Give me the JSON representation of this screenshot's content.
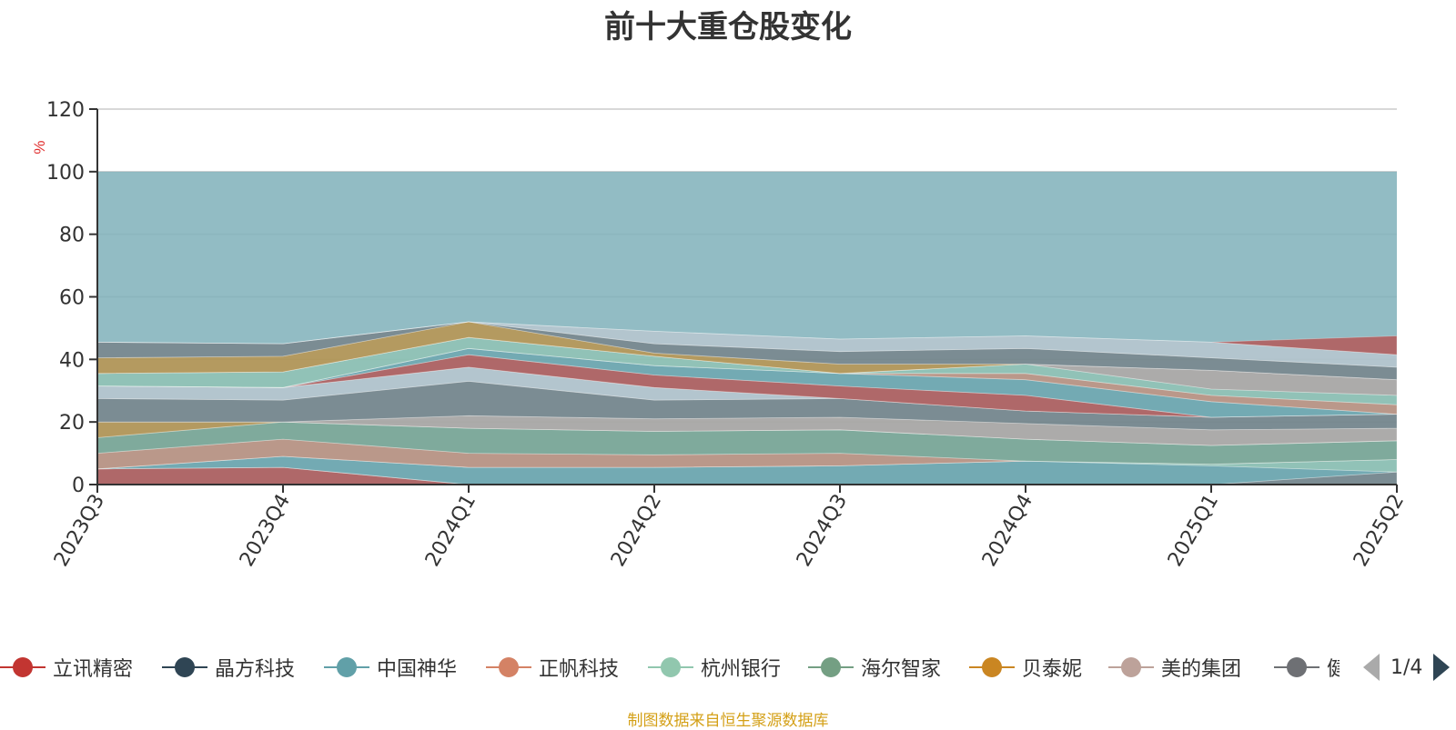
{
  "title": "前十大重仓股变化",
  "source_note": "制图数据来自恒生聚源数据库",
  "pager": {
    "text": "1/4"
  },
  "colors": {
    "background_area": "#7fb0ba",
    "axis": "#333333",
    "grid": "#cccccc",
    "unit": "#e03030"
  },
  "legend": [
    {
      "name": "立讯精密",
      "color": "#c23531"
    },
    {
      "name": "晶方科技",
      "color": "#2f4554"
    },
    {
      "name": "中国神华",
      "color": "#61a0a8"
    },
    {
      "name": "正帆科技",
      "color": "#d48265"
    },
    {
      "name": "杭州银行",
      "color": "#91c7ae"
    },
    {
      "name": "海尔智家",
      "color": "#749f83"
    },
    {
      "name": "贝泰妮",
      "color": "#ca8622"
    },
    {
      "name": "美的集团",
      "color": "#bda29a"
    },
    {
      "name": "健|",
      "color": "#6e7074"
    }
  ],
  "chart_data": {
    "type": "area",
    "stacked": true,
    "ylabel": "%",
    "ylim": [
      0,
      120
    ],
    "yticks": [
      0,
      20,
      40,
      60,
      80,
      100,
      120
    ],
    "categories": [
      "2023Q3",
      "2023Q4",
      "2024Q1",
      "2024Q2",
      "2024Q3",
      "2024Q4",
      "2025Q1",
      "2025Q2"
    ],
    "background_area_value": 100,
    "bands": [
      {
        "color": "#c23531",
        "values": [
          5,
          5.5,
          0,
          0,
          0,
          0,
          0,
          0
        ]
      },
      {
        "color": "#6e7074",
        "values": [
          0,
          0,
          0,
          0,
          0,
          0,
          0,
          4
        ]
      },
      {
        "color": "#61a0a8",
        "values": [
          0,
          3.5,
          5.5,
          5.5,
          6,
          7.5,
          6,
          0
        ]
      },
      {
        "color": "#91c7ae",
        "values": [
          0,
          0,
          0,
          0,
          0,
          0,
          0.5,
          4
        ]
      },
      {
        "color": "#d48265",
        "values": [
          5,
          5.5,
          4.5,
          4,
          4,
          0,
          0,
          0
        ]
      },
      {
        "color": "#749f83",
        "values": [
          5,
          5.5,
          8,
          7.5,
          7.5,
          7,
          6,
          6
        ]
      },
      {
        "color": "#ca8622",
        "values": [
          5,
          0,
          0,
          0,
          0,
          0,
          0,
          0
        ]
      },
      {
        "color": "#bda29a",
        "values": [
          0,
          0,
          4,
          4,
          4,
          5,
          5,
          4
        ]
      },
      {
        "color": "#6e7074",
        "values": [
          7.5,
          7,
          11,
          6,
          6,
          4,
          4,
          4.5
        ]
      },
      {
        "color": "#c8ccd4",
        "values": [
          4,
          4,
          4.5,
          4,
          0,
          0,
          0,
          0
        ]
      },
      {
        "color": "#c23531",
        "values": [
          0,
          0,
          4,
          4,
          4,
          5,
          0,
          0
        ]
      },
      {
        "color": "#61a0a8",
        "values": [
          0,
          0,
          2,
          3,
          4,
          5,
          5,
          0
        ]
      },
      {
        "color": "#d48265",
        "values": [
          0,
          0,
          0,
          0,
          0,
          2,
          2,
          3
        ]
      },
      {
        "color": "#91c7ae",
        "values": [
          4,
          5,
          3.5,
          3,
          0,
          3,
          2,
          3
        ]
      },
      {
        "color": "#bda29a",
        "values": [
          0,
          0,
          0,
          0,
          0,
          0,
          6,
          5
        ]
      },
      {
        "color": "#ca8622",
        "values": [
          5,
          5,
          5,
          1,
          3,
          0,
          0,
          0
        ]
      },
      {
        "color": "#6e7074",
        "values": [
          5,
          4,
          0,
          3,
          4,
          5,
          4,
          4
        ]
      },
      {
        "color": "#c8ccd4",
        "values": [
          0,
          0,
          0,
          4,
          4,
          4,
          5,
          4
        ]
      },
      {
        "color": "#c23531",
        "values": [
          0,
          0,
          0,
          0,
          0,
          0,
          0,
          6
        ]
      }
    ]
  }
}
